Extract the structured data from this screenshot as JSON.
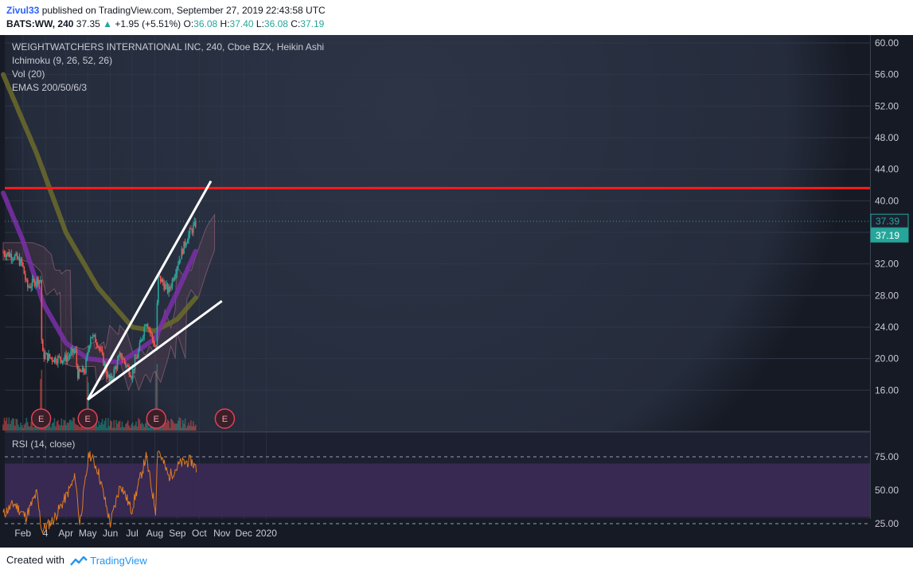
{
  "header": {
    "author": "Zivul33",
    "published_text": "published on TradingView.com, September 27, 2019 22:43:58 UTC",
    "symbol": "BATS:WW, 240",
    "last": "37.35",
    "change": "+1.95 (+5.51%)",
    "open_label": "O:",
    "open": "36.08",
    "high_label": "H:",
    "high": "37.40",
    "low_label": "L:",
    "low": "36.08",
    "close_label": "C:",
    "close": "37.19"
  },
  "legend": {
    "title": "WEIGHTWATCHERS INTERNATIONAL INC, 240, Cboe BZX, Heikin Ashi",
    "ichimoku": "Ichimoku (9, 26, 52, 26)",
    "vol": "Vol (20)",
    "emas": "EMAS 200/50/6/3",
    "rsi": "RSI (14, close)"
  },
  "footer": {
    "created_with": "Created with",
    "brand": "TradingView"
  },
  "colors": {
    "background": "#1c2030",
    "up": "#26a69a",
    "down": "#ef5350",
    "ema200": "#6b6b2a",
    "ema50": "#7b2fa8",
    "resistance": "#ff1a1a",
    "wedge": "#ffffff",
    "rsi_line": "#e07b22",
    "rsi_band": "#3b2a55"
  },
  "chart_data": {
    "type": "candlestick",
    "title": "WEIGHTWATCHERS INTERNATIONAL INC, 240, Cboe BZX, Heikin Ashi",
    "x_ticks": [
      "Feb",
      "4",
      "Apr",
      "May",
      "Jun",
      "Jul",
      "Aug",
      "Sep",
      "Oct",
      "Nov",
      "Dec",
      "2020"
    ],
    "y_ticks": [
      "60.00",
      "56.00",
      "52.00",
      "48.00",
      "44.00",
      "40.00",
      "36.00",
      "32.00",
      "28.00",
      "24.00",
      "20.00",
      "16.00"
    ],
    "ylim": [
      12.5,
      60.5
    ],
    "price_labels": {
      "last_high": "37.39",
      "close": "37.19"
    },
    "resistance_level": 41.6,
    "wedge_upper": [
      {
        "x": "May 1",
        "y": 14.8
      },
      {
        "x": "Oct 17",
        "y": 42.5
      }
    ],
    "wedge_lower": [
      {
        "x": "May 1",
        "y": 14.8
      },
      {
        "x": "Nov 1",
        "y": 27.3
      }
    ],
    "earnings_markers": [
      "Feb 26",
      "May 1",
      "Aug 3",
      "Nov 5"
    ],
    "earnings_label": "E",
    "price_path": [
      {
        "x": "Jan 5",
        "y": 33.5
      },
      {
        "x": "Jan 20",
        "y": 33.0
      },
      {
        "x": "Jan 31",
        "y": 32.0
      },
      {
        "x": "Feb 7",
        "y": 29.0
      },
      {
        "x": "Feb 20",
        "y": 30.0
      },
      {
        "x": "Feb 26",
        "y": 30.0
      },
      {
        "x": "Feb 27",
        "y": 20.5
      },
      {
        "x": "Mar 15",
        "y": 20.0
      },
      {
        "x": "Mar 31",
        "y": 20.0
      },
      {
        "x": "Apr 14",
        "y": 21.0
      },
      {
        "x": "Apr 17",
        "y": 18.0
      },
      {
        "x": "Apr 27",
        "y": 18.5
      },
      {
        "x": "May 5",
        "y": 23.0
      },
      {
        "x": "May 15",
        "y": 22.0
      },
      {
        "x": "May 31",
        "y": 17.0
      },
      {
        "x": "Jun 15",
        "y": 20.5
      },
      {
        "x": "Jun 30",
        "y": 18.0
      },
      {
        "x": "Jul 10",
        "y": 21.0
      },
      {
        "x": "Jul 20",
        "y": 25.0
      },
      {
        "x": "Aug 3",
        "y": 21.0
      },
      {
        "x": "Aug 5",
        "y": 30.5
      },
      {
        "x": "Aug 20",
        "y": 28.5
      },
      {
        "x": "Sep 1",
        "y": 32.0
      },
      {
        "x": "Sep 15",
        "y": 35.5
      },
      {
        "x": "Sep 27",
        "y": 37.19
      }
    ],
    "ema200_path": [
      {
        "x": "Jan 5",
        "y": 56.0
      },
      {
        "x": "Feb 20",
        "y": 46.0
      },
      {
        "x": "Apr 1",
        "y": 36.0
      },
      {
        "x": "May 15",
        "y": 29.0
      },
      {
        "x": "Jul 1",
        "y": 24.0
      },
      {
        "x": "Aug 1",
        "y": 23.5
      },
      {
        "x": "Sep 1",
        "y": 25.0
      },
      {
        "x": "Sep 27",
        "y": 27.8
      }
    ],
    "ema50_path": [
      {
        "x": "Jan 5",
        "y": 41.0
      },
      {
        "x": "Feb 1",
        "y": 35.0
      },
      {
        "x": "Mar 1",
        "y": 27.0
      },
      {
        "x": "Apr 1",
        "y": 22.0
      },
      {
        "x": "May 1",
        "y": 20.0
      },
      {
        "x": "Jun 15",
        "y": 19.5
      },
      {
        "x": "Aug 1",
        "y": 22.5
      },
      {
        "x": "Sep 1",
        "y": 28.5
      },
      {
        "x": "Sep 27",
        "y": 33.8
      }
    ],
    "rsi": {
      "label": "RSI (14, close)",
      "y_ticks": [
        "75.00",
        "50.00",
        "25.00"
      ],
      "ylim": [
        10,
        90
      ],
      "band": [
        30,
        70
      ],
      "values": [
        {
          "x": "Jan 5",
          "y": 32
        },
        {
          "x": "Jan 20",
          "y": 40
        },
        {
          "x": "Feb 5",
          "y": 30
        },
        {
          "x": "Feb 20",
          "y": 48
        },
        {
          "x": "Feb 27",
          "y": 20
        },
        {
          "x": "Mar 15",
          "y": 28
        },
        {
          "x": "Apr 1",
          "y": 45
        },
        {
          "x": "Apr 14",
          "y": 60
        },
        {
          "x": "Apr 20",
          "y": 25
        },
        {
          "x": "May 3",
          "y": 78
        },
        {
          "x": "May 15",
          "y": 65
        },
        {
          "x": "Jun 1",
          "y": 25
        },
        {
          "x": "Jun 15",
          "y": 55
        },
        {
          "x": "Jun 30",
          "y": 35
        },
        {
          "x": "Jul 20",
          "y": 75
        },
        {
          "x": "Aug 2",
          "y": 35
        },
        {
          "x": "Aug 5",
          "y": 82
        },
        {
          "x": "Aug 20",
          "y": 60
        },
        {
          "x": "Sep 5",
          "y": 70
        },
        {
          "x": "Sep 20",
          "y": 72
        },
        {
          "x": "Sep 27",
          "y": 66
        }
      ]
    }
  }
}
